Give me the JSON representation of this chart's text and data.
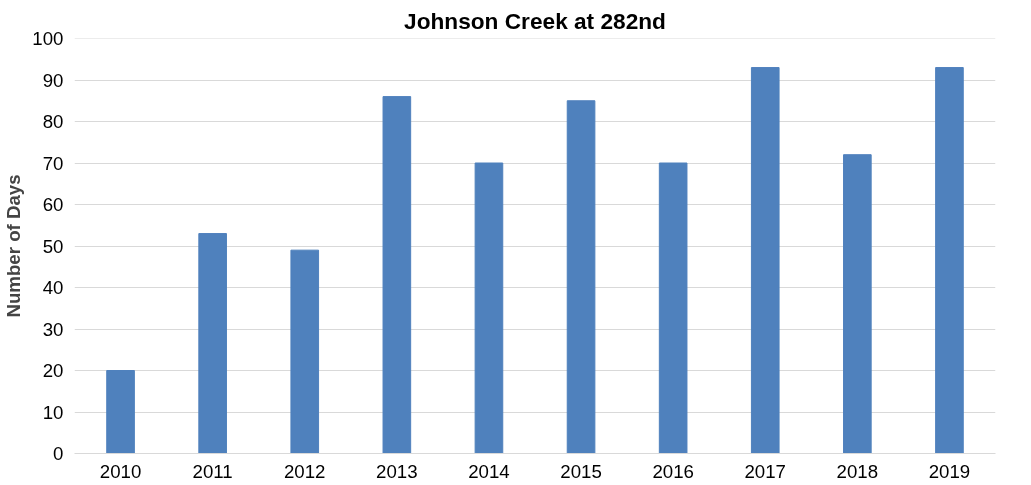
{
  "chart_data": {
    "type": "bar",
    "title": "Johnson Creek at 282nd",
    "ylabel": "Number of Days",
    "categories": [
      "2010",
      "2011",
      "2012",
      "2013",
      "2014",
      "2015",
      "2016",
      "2017",
      "2018",
      "2019"
    ],
    "values": [
      20,
      53,
      49,
      86,
      70,
      85,
      70,
      93,
      72,
      93
    ],
    "color": "#4f81bd",
    "ylim": [
      0,
      100
    ],
    "yticks": [
      0,
      10,
      20,
      30,
      40,
      50,
      60,
      70,
      80,
      90,
      100
    ],
    "grid": "y"
  }
}
